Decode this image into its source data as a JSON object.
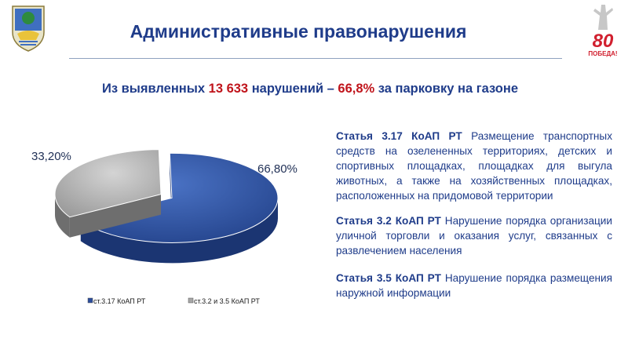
{
  "header": {
    "title": "Административные правонарушения",
    "logo_text": "80",
    "logo_subtext": "ПОБЕДА!"
  },
  "subtitle": {
    "prefix": "Из выявленных ",
    "count": "13 633",
    "middle": " нарушений – ",
    "percent": "66,8%",
    "suffix": " за парковку на газоне"
  },
  "chart_data": {
    "type": "pie",
    "title": "",
    "categories": [
      "ст.3.17 КоАП РТ",
      "ст.3.2 и 3.5 КоАП РТ"
    ],
    "values": [
      66.8,
      33.2
    ],
    "data_labels": [
      "66,80%",
      "33,20%"
    ],
    "colors": [
      "#2b4d9c",
      "#a6a6a6"
    ],
    "exploded": true,
    "three_d": true,
    "legend_position": "bottom"
  },
  "articles": [
    {
      "title": "Статья 3.17 КоАП РТ",
      "text": " Размещение транспортных средств на озелененных территориях, детских и спортивных площадках, площадках для выгула животных, а также на хозяйственных площадках, расположенных на придомовой территории"
    },
    {
      "title": "Статья 3.2 КоАП РТ",
      "text": " Нарушение порядка организации уличной торговли и оказания услуг, связанных с развлечением населения"
    },
    {
      "title": "Статья 3.5 КоАП РТ",
      "text": " Нарушение порядка размещения наружной информации"
    }
  ]
}
